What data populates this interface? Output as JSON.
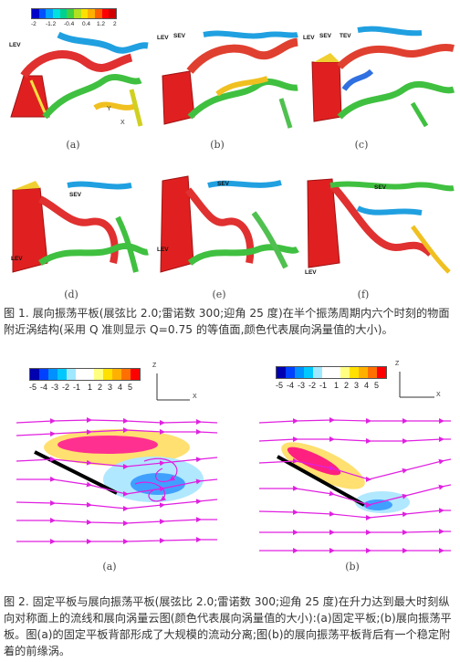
{
  "figure1": {
    "colorbar": {
      "ticks": [
        "-2",
        "-1.2",
        "-0.4",
        "0.4",
        "1.2",
        "2"
      ],
      "colors": [
        "#0000c8",
        "#0050ff",
        "#00a0ff",
        "#00e0e0",
        "#00d090",
        "#40d040",
        "#b0e020",
        "#ffe000",
        "#ffb000",
        "#ff6000",
        "#ff0000",
        "#d00000"
      ]
    },
    "panels": [
      {
        "label": "(a)",
        "annotations": [
          "LEV"
        ]
      },
      {
        "label": "(b)",
        "annotations": [
          "LEV",
          "SEV"
        ]
      },
      {
        "label": "(c)",
        "annotations": [
          "LEV",
          "SEV",
          "TEV"
        ]
      },
      {
        "label": "(d)",
        "annotations": [
          "SEV",
          "LEV"
        ]
      },
      {
        "label": "(e)",
        "annotations": [
          "SEV",
          "LEV"
        ]
      },
      {
        "label": "(f)",
        "annotations": [
          "SEV",
          "LEV"
        ]
      }
    ],
    "axes": {
      "y": "Y",
      "x": "X"
    },
    "caption": "图 1.  展向振荡平板(展弦比 2.0;雷诺数 300;迎角 25 度)在半个振荡周期内六个时刻的物面附近涡结构(采用 Q 准则显示 Q=0.75 的等值面,颜色代表展向涡量值的大小)。"
  },
  "figure2": {
    "colorbar": {
      "ticks": [
        "-5",
        "-4",
        "-3",
        "-2",
        "-1",
        "1",
        "2",
        "3",
        "4",
        "5"
      ],
      "colors": [
        "#0000b0",
        "#0040ff",
        "#0090ff",
        "#00c8ff",
        "#a0e8ff",
        "#ffffff",
        "#ffffff",
        "#ffff80",
        "#ffe000",
        "#ffb000",
        "#ff7000",
        "#ff0000"
      ]
    },
    "panels": [
      {
        "label": "(a)"
      },
      {
        "label": "(b)"
      }
    ],
    "axes": {
      "z": "Z",
      "x": "X"
    },
    "caption": "图 2.  固定平板与展向振荡平板(展弦比 2.0;雷诺数 300;迎角 25 度)在升力达到最大时刻纵向对称面上的流线和展向涡量云图(颜色代表展向涡量值的大小):(a)固定平板;(b)展向振荡平板。图(a)的固定平板背部形成了大规模的流动分离;图(b)的展向振荡平板背后有一个稳定附着的前缘涡。"
  }
}
